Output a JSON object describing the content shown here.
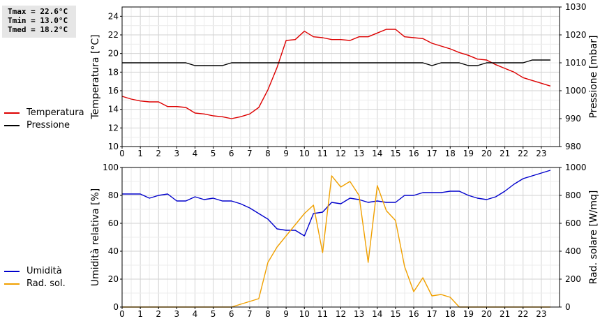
{
  "stats": {
    "tmax": "Tmax = 22.6°C",
    "tmin": "Tmin = 13.0°C",
    "tmed": "Tmed = 18.2°C"
  },
  "chart_data": [
    {
      "type": "line",
      "name": "temperatura-pressione",
      "x_ticks": [
        0,
        1,
        2,
        3,
        4,
        5,
        6,
        7,
        8,
        9,
        10,
        11,
        12,
        13,
        14,
        15,
        16,
        17,
        18,
        19,
        20,
        21,
        22,
        23
      ],
      "xlim": [
        0,
        24
      ],
      "ylabel": "Temperatura [°C]",
      "ylim": [
        10,
        25
      ],
      "y_ticks": [
        10,
        12,
        14,
        16,
        18,
        20,
        22,
        24
      ],
      "y2label": "Pressione [mbar]",
      "y2lim": [
        980,
        1030
      ],
      "y2_ticks": [
        980,
        990,
        1000,
        1010,
        1020,
        1030
      ],
      "grid": true,
      "legend_position": "left",
      "series": [
        {
          "name": "Temperatura",
          "axis": "left",
          "color": "#dd0000",
          "x": [
            0,
            0.5,
            1,
            1.5,
            2,
            2.5,
            3,
            3.5,
            4,
            4.5,
            5,
            5.5,
            6,
            6.5,
            7,
            7.5,
            8,
            8.5,
            9,
            9.5,
            10,
            10.5,
            11,
            11.5,
            12,
            12.5,
            13,
            13.5,
            14,
            14.5,
            15,
            15.5,
            16,
            16.5,
            17,
            17.5,
            18,
            18.5,
            19,
            19.5,
            20,
            20.5,
            21,
            21.5,
            22,
            22.5,
            23,
            23.5
          ],
          "y": [
            15.4,
            15.1,
            14.9,
            14.8,
            14.8,
            14.3,
            14.3,
            14.2,
            13.6,
            13.5,
            13.3,
            13.2,
            13.0,
            13.2,
            13.5,
            14.2,
            16.1,
            18.5,
            21.4,
            21.5,
            22.4,
            21.8,
            21.7,
            21.5,
            21.5,
            21.4,
            21.8,
            21.8,
            22.2,
            22.6,
            22.6,
            21.8,
            21.7,
            21.6,
            21.1,
            20.8,
            20.5,
            20.1,
            19.8,
            19.4,
            19.3,
            18.8,
            18.4,
            18.0,
            17.4,
            17.1,
            16.8,
            16.5
          ]
        },
        {
          "name": "Pressione",
          "axis": "right",
          "color": "#000000",
          "x": [
            0,
            3.5,
            4,
            5.5,
            6,
            16.5,
            17,
            17.5,
            18,
            18.5,
            19,
            19.5,
            20,
            20.5,
            22,
            22.5,
            23.5
          ],
          "y": [
            1010,
            1010,
            1009,
            1009,
            1010,
            1010,
            1009,
            1010,
            1010,
            1010,
            1009,
            1009,
            1010,
            1010,
            1010,
            1011,
            1011
          ]
        }
      ]
    },
    {
      "type": "line",
      "name": "umidita-radiazione",
      "x_ticks": [
        0,
        1,
        2,
        3,
        4,
        5,
        6,
        7,
        8,
        9,
        10,
        11,
        12,
        13,
        14,
        15,
        16,
        17,
        18,
        19,
        20,
        21,
        22,
        23
      ],
      "xlim": [
        0,
        24
      ],
      "ylabel": "Umidità relativa [%]",
      "ylim": [
        0,
        100
      ],
      "y_ticks": [
        0,
        20,
        40,
        60,
        80,
        100
      ],
      "y2label": "Rad. solare [W/mq]",
      "y2lim": [
        0,
        1000
      ],
      "y2_ticks": [
        0,
        200,
        400,
        600,
        800,
        1000
      ],
      "grid": true,
      "legend_position": "left",
      "series": [
        {
          "name": "Umidità",
          "axis": "left",
          "color": "#0000cc",
          "x": [
            0,
            0.5,
            1,
            1.5,
            2,
            2.5,
            3,
            3.5,
            4,
            4.5,
            5,
            5.5,
            6,
            6.5,
            7,
            7.5,
            8,
            8.5,
            9,
            9.5,
            10,
            10.5,
            11,
            11.5,
            12,
            12.5,
            13,
            13.5,
            14,
            14.5,
            15,
            15.5,
            16,
            16.5,
            17,
            17.5,
            18,
            18.5,
            19,
            19.5,
            20,
            20.5,
            21,
            21.5,
            22,
            22.5,
            23,
            23.5
          ],
          "y": [
            81,
            81,
            81,
            78,
            80,
            81,
            76,
            76,
            79,
            77,
            78,
            76,
            76,
            74,
            71,
            67,
            63,
            56,
            55,
            55,
            51,
            67,
            68,
            75,
            74,
            78,
            77,
            75,
            76,
            75,
            75,
            80,
            80,
            82,
            82,
            82,
            83,
            83,
            80,
            78,
            77,
            79,
            83,
            88,
            92,
            94,
            96,
            98
          ]
        },
        {
          "name": "Rad. sol.",
          "axis": "right",
          "color": "#f0a000",
          "x": [
            0,
            6,
            6.5,
            7,
            7.5,
            8,
            8.5,
            9,
            9.5,
            10,
            10.5,
            11,
            11.5,
            12,
            12.5,
            13,
            13.5,
            14,
            14.5,
            15,
            15.5,
            16,
            16.5,
            17,
            17.5,
            18,
            18.5,
            19,
            23.5
          ],
          "y": [
            0,
            0,
            20,
            40,
            60,
            320,
            430,
            510,
            590,
            670,
            730,
            390,
            940,
            860,
            900,
            800,
            320,
            870,
            690,
            620,
            290,
            110,
            210,
            80,
            90,
            70,
            0,
            0,
            0
          ]
        }
      ]
    }
  ]
}
